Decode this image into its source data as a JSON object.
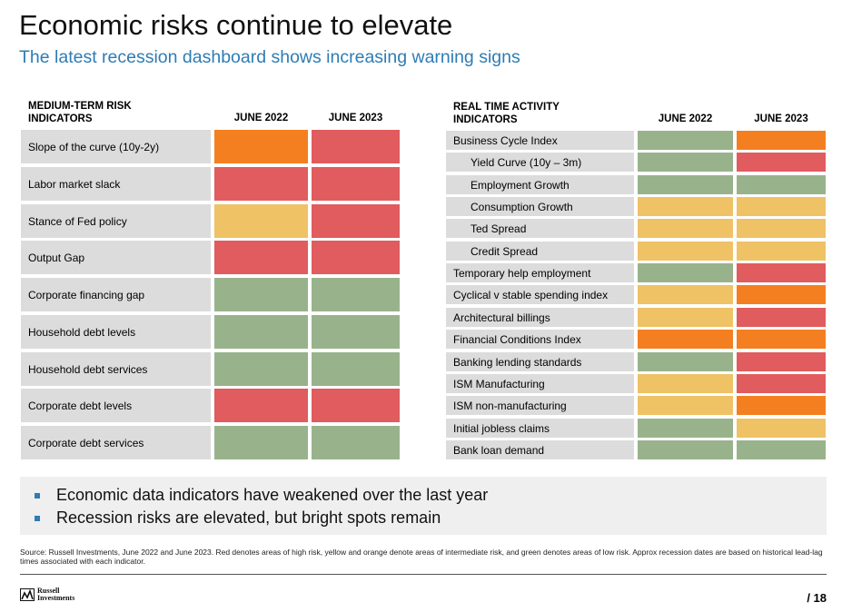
{
  "header": {
    "title": "Economic risks continue to elevate",
    "subtitle": "The latest recession dashboard shows increasing warning signs"
  },
  "colors": {
    "red": "#e05c5e",
    "orange": "#f47f21",
    "yellow": "#efc266",
    "green": "#98b38c",
    "label_bg": "#dcdcdc",
    "accent_blue": "#2e7cb4"
  },
  "medium_term": {
    "heading": "MEDIUM-TERM RISK INDICATORS",
    "col1": "JUNE 2022",
    "col2": "JUNE 2023",
    "rows": [
      {
        "label": "Slope of the curve (10y-2y)",
        "june_2022": "orange",
        "june_2023": "red"
      },
      {
        "label": "Labor market slack",
        "june_2022": "red",
        "june_2023": "red"
      },
      {
        "label": "Stance of Fed policy",
        "june_2022": "yellow",
        "june_2023": "red"
      },
      {
        "label": "Output Gap",
        "june_2022": "red",
        "june_2023": "red"
      },
      {
        "label": "Corporate financing gap",
        "june_2022": "green",
        "june_2023": "green"
      },
      {
        "label": "Household debt levels",
        "june_2022": "green",
        "june_2023": "green"
      },
      {
        "label": "Household debt services",
        "june_2022": "green",
        "june_2023": "green"
      },
      {
        "label": "Corporate debt levels",
        "june_2022": "red",
        "june_2023": "red"
      },
      {
        "label": "Corporate debt services",
        "june_2022": "green",
        "june_2023": "green"
      }
    ]
  },
  "real_time": {
    "heading": "REAL TIME ACTIVITY INDICATORS",
    "col1": "JUNE 2022",
    "col2": "JUNE 2023",
    "rows": [
      {
        "label": "Business Cycle Index",
        "indent": false,
        "june_2022": "green",
        "june_2023": "orange"
      },
      {
        "label": "Yield Curve (10y – 3m)",
        "indent": true,
        "june_2022": "green",
        "june_2023": "red"
      },
      {
        "label": "Employment Growth",
        "indent": true,
        "june_2022": "green",
        "june_2023": "green"
      },
      {
        "label": "Consumption Growth",
        "indent": true,
        "june_2022": "yellow",
        "june_2023": "yellow"
      },
      {
        "label": "Ted Spread",
        "indent": true,
        "june_2022": "yellow",
        "june_2023": "yellow"
      },
      {
        "label": "Credit Spread",
        "indent": true,
        "june_2022": "yellow",
        "june_2023": "yellow"
      },
      {
        "label": "Temporary help employment",
        "indent": false,
        "june_2022": "green",
        "june_2023": "red"
      },
      {
        "label": "Cyclical v stable spending index",
        "indent": false,
        "june_2022": "yellow",
        "june_2023": "orange"
      },
      {
        "label": "Architectural billings",
        "indent": false,
        "june_2022": "yellow",
        "june_2023": "red"
      },
      {
        "label": "Financial Conditions Index",
        "indent": false,
        "june_2022": "orange",
        "june_2023": "orange"
      },
      {
        "label": "Banking lending standards",
        "indent": false,
        "june_2022": "green",
        "june_2023": "red"
      },
      {
        "label": "ISM Manufacturing",
        "indent": false,
        "june_2022": "yellow",
        "june_2023": "red"
      },
      {
        "label": "ISM non-manufacturing",
        "indent": false,
        "june_2022": "yellow",
        "june_2023": "orange"
      },
      {
        "label": "Initial jobless claims",
        "indent": false,
        "june_2022": "green",
        "june_2023": "yellow"
      },
      {
        "label": "Bank loan demand",
        "indent": false,
        "june_2022": "green",
        "june_2023": "green"
      }
    ]
  },
  "summary": {
    "bullets": [
      "Economic data indicators have weakened over the last year",
      "Recession risks are elevated, but bright spots remain"
    ]
  },
  "footer": {
    "source": "Source: Russell Investments, June 2022 and June 2023. Red denotes areas of high risk, yellow and orange denote areas of intermediate risk, and green denotes areas of low risk. Approx recession dates are based on historical lead-lag times associated with each indicator.",
    "logo_line1": "Russell",
    "logo_line2": "Investments",
    "page_number": "/ 18"
  }
}
